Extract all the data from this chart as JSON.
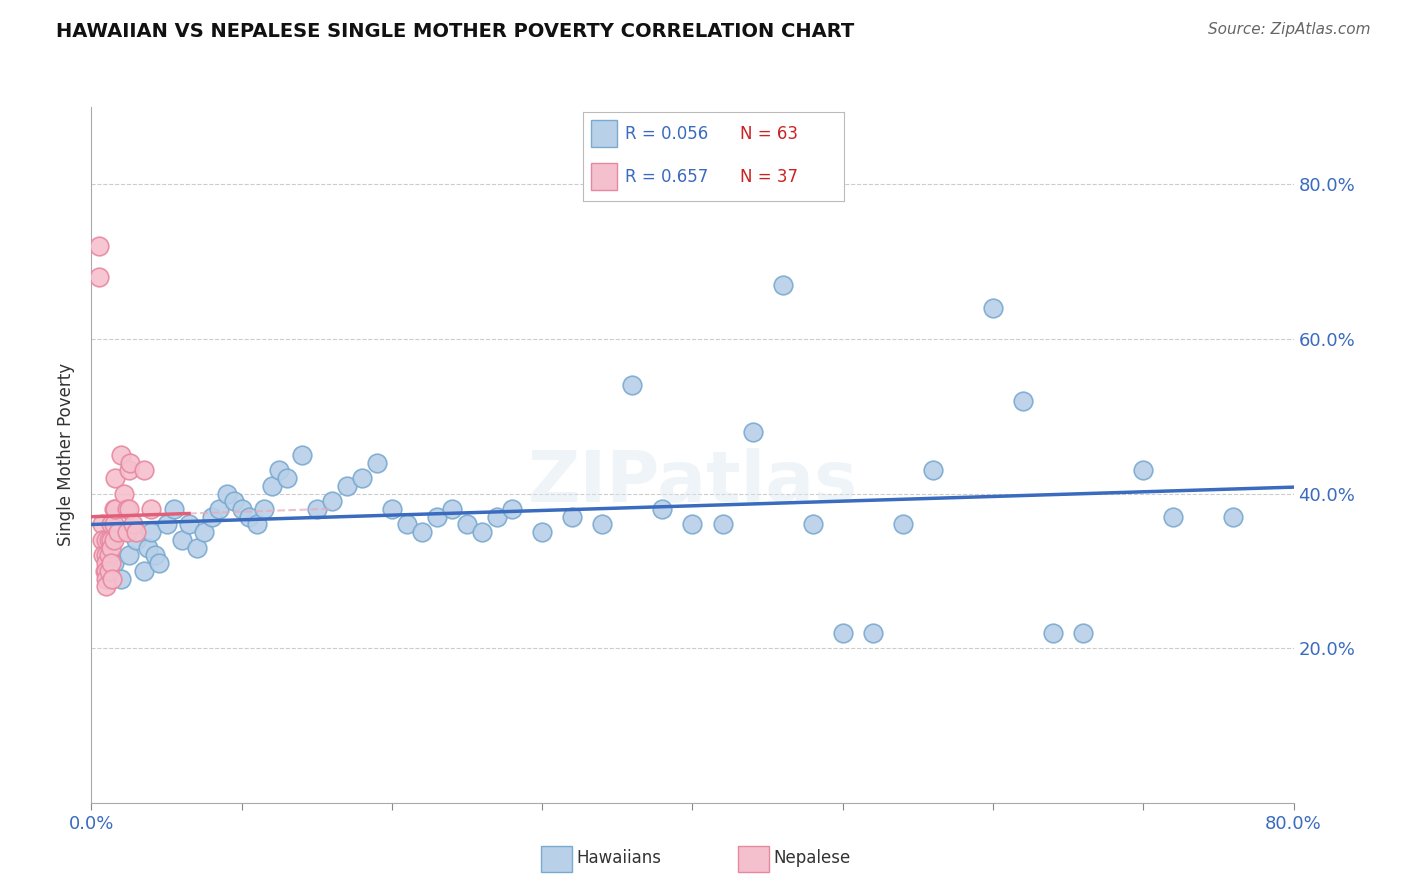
{
  "title": "HAWAIIAN VS NEPALESE SINGLE MOTHER POVERTY CORRELATION CHART",
  "source": "Source: ZipAtlas.com",
  "ylabel": "Single Mother Poverty",
  "watermark": "ZIPatlas",
  "xlim": [
    0.0,
    0.8
  ],
  "ylim": [
    0.0,
    0.9
  ],
  "hawaiian_color": "#b8d0e8",
  "hawaiian_edge_color": "#7aaad0",
  "nepalese_color": "#f5c0ce",
  "nepalese_edge_color": "#e888a0",
  "trend_hawaiian_color": "#3a6bbf",
  "trend_nepalese_color": "#e0607a",
  "trend_nepalese_dashed_color": "#e8a8b8",
  "legend_color_r": "#3a6bbf",
  "legend_color_n": "#cc2222",
  "hawaiian_x": [
    0.01,
    0.015,
    0.02,
    0.025,
    0.03,
    0.035,
    0.038,
    0.04,
    0.042,
    0.045,
    0.05,
    0.055,
    0.06,
    0.065,
    0.07,
    0.075,
    0.08,
    0.085,
    0.09,
    0.095,
    0.1,
    0.105,
    0.11,
    0.115,
    0.12,
    0.125,
    0.13,
    0.14,
    0.15,
    0.16,
    0.17,
    0.18,
    0.19,
    0.2,
    0.21,
    0.22,
    0.23,
    0.24,
    0.25,
    0.26,
    0.27,
    0.28,
    0.3,
    0.32,
    0.34,
    0.36,
    0.38,
    0.4,
    0.42,
    0.44,
    0.46,
    0.48,
    0.5,
    0.52,
    0.54,
    0.56,
    0.6,
    0.62,
    0.64,
    0.66,
    0.7,
    0.72,
    0.76
  ],
  "hawaiian_y": [
    0.33,
    0.31,
    0.29,
    0.32,
    0.34,
    0.3,
    0.33,
    0.35,
    0.32,
    0.31,
    0.36,
    0.38,
    0.34,
    0.36,
    0.33,
    0.35,
    0.37,
    0.38,
    0.4,
    0.39,
    0.38,
    0.37,
    0.36,
    0.38,
    0.41,
    0.43,
    0.42,
    0.45,
    0.38,
    0.39,
    0.41,
    0.42,
    0.44,
    0.38,
    0.36,
    0.35,
    0.37,
    0.38,
    0.36,
    0.35,
    0.37,
    0.38,
    0.35,
    0.37,
    0.36,
    0.54,
    0.38,
    0.36,
    0.36,
    0.48,
    0.67,
    0.36,
    0.22,
    0.22,
    0.36,
    0.43,
    0.64,
    0.52,
    0.22,
    0.22,
    0.43,
    0.37,
    0.37
  ],
  "nepalese_x": [
    0.005,
    0.005,
    0.007,
    0.007,
    0.008,
    0.009,
    0.01,
    0.01,
    0.01,
    0.01,
    0.01,
    0.01,
    0.012,
    0.012,
    0.012,
    0.013,
    0.013,
    0.013,
    0.013,
    0.014,
    0.015,
    0.015,
    0.015,
    0.016,
    0.016,
    0.018,
    0.02,
    0.022,
    0.024,
    0.024,
    0.025,
    0.025,
    0.026,
    0.028,
    0.03,
    0.035,
    0.04
  ],
  "nepalese_y": [
    0.72,
    0.68,
    0.36,
    0.34,
    0.32,
    0.3,
    0.34,
    0.32,
    0.31,
    0.3,
    0.29,
    0.28,
    0.34,
    0.32,
    0.3,
    0.36,
    0.34,
    0.33,
    0.31,
    0.29,
    0.38,
    0.36,
    0.34,
    0.42,
    0.38,
    0.35,
    0.45,
    0.4,
    0.38,
    0.35,
    0.43,
    0.38,
    0.44,
    0.36,
    0.35,
    0.43,
    0.38
  ],
  "nepalese_trend_x0": 0.0,
  "nepalese_trend_x1": 0.065,
  "nepalese_trend_dashed_x0": 0.065,
  "nepalese_trend_dashed_x1": 0.16,
  "hawaiian_trend_x0": 0.0,
  "hawaiian_trend_x1": 0.8
}
